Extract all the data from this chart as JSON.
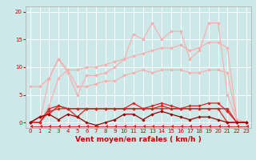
{
  "x": [
    0,
    1,
    2,
    3,
    4,
    5,
    6,
    7,
    8,
    9,
    10,
    11,
    12,
    13,
    14,
    15,
    16,
    17,
    18,
    19,
    20,
    21,
    22,
    23
  ],
  "background_color": "#cce8e8",
  "grid_color": "#ffffff",
  "xlabel": "Vent moyen/en rafales ( km/h )",
  "xlabel_color": "#cc0000",
  "xlabel_fontsize": 6.5,
  "tick_color": "#cc0000",
  "tick_fontsize": 5.0,
  "ylim": [
    -1,
    21
  ],
  "yticks": [
    0,
    5,
    10,
    15,
    20
  ],
  "series": [
    {
      "color": "#ffaaaa",
      "linewidth": 0.8,
      "marker": "D",
      "markersize": 1.8,
      "data": [
        6.5,
        6.5,
        8.0,
        11.5,
        9.0,
        5.0,
        8.5,
        8.5,
        9.0,
        10.0,
        11.5,
        16.0,
        15.0,
        18.0,
        15.0,
        16.5,
        16.5,
        11.5,
        13.0,
        18.0,
        18.0,
        5.0,
        0.5,
        0.0
      ]
    },
    {
      "color": "#ffaaaa",
      "linewidth": 0.8,
      "marker": "D",
      "markersize": 1.8,
      "data": [
        0.0,
        0.0,
        3.0,
        8.0,
        9.5,
        9.5,
        10.0,
        10.0,
        10.5,
        11.0,
        11.5,
        12.0,
        12.5,
        13.0,
        13.5,
        13.5,
        14.0,
        13.0,
        13.5,
        14.5,
        14.5,
        13.5,
        0.5,
        0.0
      ]
    },
    {
      "color": "#ffaaaa",
      "linewidth": 0.8,
      "marker": "D",
      "markersize": 1.8,
      "data": [
        0.0,
        0.0,
        8.0,
        11.5,
        9.5,
        6.5,
        6.5,
        7.0,
        7.5,
        7.5,
        8.5,
        9.0,
        9.5,
        9.0,
        9.5,
        9.5,
        9.5,
        9.0,
        9.0,
        9.5,
        9.5,
        9.0,
        0.5,
        0.0
      ]
    },
    {
      "color": "#dd2222",
      "linewidth": 0.9,
      "marker": "D",
      "markersize": 1.8,
      "data": [
        0.0,
        1.0,
        1.5,
        3.0,
        2.5,
        1.0,
        2.5,
        2.5,
        2.5,
        2.5,
        2.5,
        3.5,
        2.5,
        3.0,
        3.5,
        3.0,
        2.5,
        3.0,
        3.0,
        3.5,
        3.5,
        2.0,
        0.0,
        0.0
      ]
    },
    {
      "color": "#dd2222",
      "linewidth": 0.9,
      "marker": "D",
      "markersize": 1.8,
      "data": [
        0.0,
        0.0,
        2.0,
        2.5,
        2.5,
        2.5,
        2.5,
        2.5,
        2.5,
        2.5,
        2.5,
        2.5,
        2.5,
        2.5,
        2.5,
        2.5,
        2.5,
        2.5,
        2.5,
        2.5,
        2.5,
        2.5,
        0.0,
        0.0
      ]
    },
    {
      "color": "#dd2222",
      "linewidth": 0.9,
      "marker": "D",
      "markersize": 1.8,
      "data": [
        0.0,
        0.0,
        2.5,
        3.0,
        2.5,
        2.5,
        2.5,
        2.5,
        2.5,
        2.5,
        2.5,
        2.5,
        2.5,
        2.5,
        3.0,
        2.5,
        2.5,
        2.5,
        2.5,
        2.5,
        2.5,
        0.0,
        0.0,
        0.0
      ]
    },
    {
      "color": "#990000",
      "linewidth": 0.9,
      "marker": "D",
      "markersize": 1.8,
      "data": [
        0.0,
        1.0,
        1.5,
        0.5,
        1.5,
        1.0,
        0.0,
        -0.5,
        0.0,
        0.5,
        1.5,
        1.5,
        0.5,
        1.5,
        2.0,
        1.5,
        1.0,
        0.5,
        1.0,
        1.0,
        0.5,
        0.0,
        0.0,
        0.0
      ]
    },
    {
      "color": "#dd2222",
      "linewidth": 0.7,
      "marker": 4,
      "markersize": 2.5,
      "data": [
        -0.7,
        -0.7,
        -0.7,
        -0.7,
        -0.7,
        -0.7,
        -0.7,
        -0.7,
        -0.7,
        -0.7,
        -0.7,
        -0.7,
        -0.7,
        -0.7,
        -0.7,
        -0.7,
        -0.7,
        -0.7,
        -0.7,
        -0.7,
        -0.7,
        -0.7,
        -0.7,
        -0.7
      ]
    }
  ]
}
